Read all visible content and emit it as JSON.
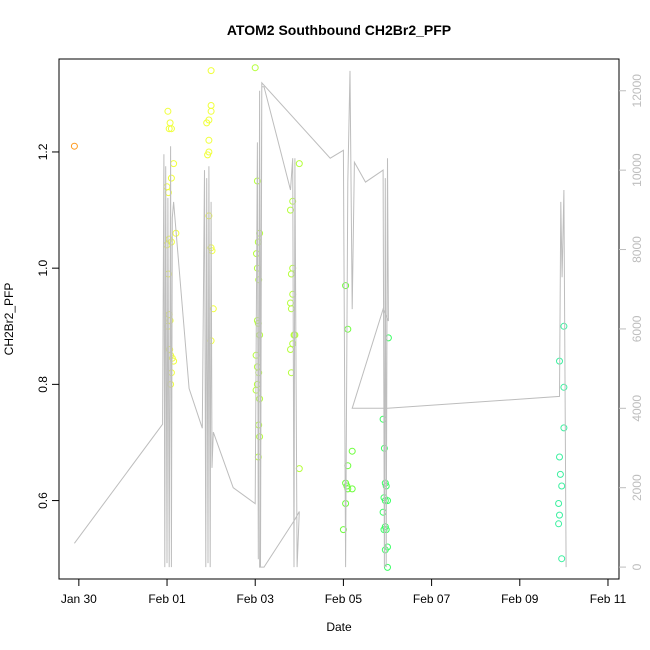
{
  "chart_data": {
    "type": "scatter",
    "title": "ATOM2 Southbound CH2Br2_PFP",
    "xlabel": "Date",
    "ylabel": "CH2Br2_PFP",
    "x_unit": "days (0 = Jan 28 00:00)",
    "xlim": [
      1.55,
      14.25
    ],
    "ylim": [
      0.465,
      1.36
    ],
    "y2lim": [
      -300,
      12800
    ],
    "x_ticks": [
      {
        "value": 2,
        "label": "Jan 30"
      },
      {
        "value": 4,
        "label": "Feb 01"
      },
      {
        "value": 6,
        "label": "Feb 03"
      },
      {
        "value": 8,
        "label": "Feb 05"
      },
      {
        "value": 10,
        "label": "Feb 07"
      },
      {
        "value": 12,
        "label": "Feb 09"
      },
      {
        "value": 14,
        "label": "Feb 11"
      }
    ],
    "y_ticks": [
      {
        "value": 0.6,
        "label": "0.6"
      },
      {
        "value": 0.8,
        "label": "0.8"
      },
      {
        "value": 1.0,
        "label": "1.0"
      },
      {
        "value": 1.2,
        "label": "1.2"
      }
    ],
    "y2_ticks": [
      {
        "value": 0,
        "label": "0"
      },
      {
        "value": 2000,
        "label": "2000"
      },
      {
        "value": 4000,
        "label": "4000"
      },
      {
        "value": 6000,
        "label": "6000"
      },
      {
        "value": 8000,
        "label": "8000"
      },
      {
        "value": 10000,
        "label": "10000"
      },
      {
        "value": 12000,
        "label": "12000"
      }
    ],
    "line_color": "#bdbdbd",
    "altitude_line": {
      "x": [
        1.9,
        3.9,
        3.93,
        3.95,
        3.97,
        4.0,
        4.02,
        4.05,
        4.08,
        4.1,
        4.12,
        4.15,
        4.5,
        4.8,
        4.85,
        4.88,
        4.9,
        4.93,
        4.95,
        4.98,
        5.0,
        5.02,
        5.05,
        5.5,
        6.0,
        6.05,
        6.07,
        6.1,
        6.12,
        6.15,
        6.2,
        6.5,
        6.8,
        6.85,
        6.88,
        6.9,
        6.95,
        7.0,
        6.9,
        6.2,
        6.1,
        6.15,
        7.7,
        8.0,
        8.05,
        8.1,
        8.15,
        8.2,
        8.25,
        8.5,
        8.9,
        8.93,
        8.95,
        8.97,
        9.0,
        9.02,
        8.9,
        8.2,
        9.0,
        12.9,
        12.93,
        12.96,
        13.0,
        13.05
      ],
      "y": [
        600,
        3600,
        10400,
        0,
        10100,
        100,
        9300,
        0,
        10600,
        0,
        8800,
        9200,
        4500,
        3500,
        10000,
        0,
        9800,
        100,
        10100,
        0,
        9200,
        2500,
        3400,
        2000,
        1600,
        10700,
        200,
        12000,
        0,
        12100,
        12100,
        10800,
        9500,
        10300,
        0,
        10300,
        0,
        1400,
        1200,
        0,
        0,
        12200,
        10300,
        10500,
        0,
        9700,
        12500,
        6500,
        10200,
        9700,
        10000,
        0,
        9800,
        0,
        10300,
        6200,
        6500,
        4000,
        4000,
        4300,
        9200,
        7300,
        9500,
        0
      ]
    },
    "series": [
      {
        "color": "#ff9a1e",
        "points": [
          [
            1.9,
            1.21
          ]
        ]
      },
      {
        "color": "#f0ff3c",
        "points": [
          [
            4.02,
            1.27
          ],
          [
            4.05,
            1.24
          ],
          [
            4.07,
            1.25
          ],
          [
            4.1,
            1.24
          ],
          [
            4.0,
            1.14
          ],
          [
            4.03,
            1.13
          ],
          [
            4.15,
            1.18
          ],
          [
            4.1,
            1.155
          ],
          [
            4.05,
            1.05
          ],
          [
            4.1,
            1.045
          ],
          [
            4.0,
            1.04
          ],
          [
            4.03,
            0.99
          ],
          [
            4.05,
            0.92
          ],
          [
            4.07,
            0.91
          ],
          [
            4.02,
            0.9
          ],
          [
            4.06,
            0.86
          ],
          [
            4.08,
            0.85
          ],
          [
            4.12,
            0.845
          ],
          [
            4.15,
            0.84
          ],
          [
            4.1,
            0.82
          ],
          [
            4.08,
            0.8
          ],
          [
            4.2,
            1.06
          ],
          [
            5.0,
            1.34
          ],
          [
            4.9,
            1.25
          ],
          [
            5.0,
            1.28
          ],
          [
            4.95,
            1.255
          ],
          [
            4.95,
            1.2
          ],
          [
            4.95,
            1.22
          ],
          [
            5.0,
            1.27
          ],
          [
            4.92,
            1.195
          ],
          [
            4.95,
            1.09
          ],
          [
            5.0,
            1.035
          ],
          [
            5.02,
            1.03
          ],
          [
            5.05,
            0.93
          ],
          [
            5.0,
            0.875
          ]
        ]
      },
      {
        "color": "#b6ff3c",
        "points": [
          [
            6.0,
            1.345
          ],
          [
            6.05,
            1.15
          ],
          [
            6.1,
            1.06
          ],
          [
            6.07,
            1.045
          ],
          [
            6.03,
            1.025
          ],
          [
            6.05,
            1.0
          ],
          [
            6.08,
            0.98
          ],
          [
            6.05,
            0.91
          ],
          [
            6.07,
            0.905
          ],
          [
            6.1,
            0.885
          ],
          [
            6.02,
            0.85
          ],
          [
            6.05,
            0.83
          ],
          [
            6.08,
            0.82
          ],
          [
            6.05,
            0.8
          ],
          [
            6.02,
            0.79
          ],
          [
            6.1,
            0.775
          ],
          [
            6.08,
            0.73
          ],
          [
            6.1,
            0.71
          ],
          [
            6.07,
            0.675
          ],
          [
            7.0,
            1.18
          ],
          [
            6.85,
            1.115
          ],
          [
            6.8,
            1.1
          ],
          [
            6.85,
            1.0
          ],
          [
            6.82,
            0.99
          ],
          [
            6.85,
            0.955
          ],
          [
            6.8,
            0.94
          ],
          [
            6.82,
            0.93
          ],
          [
            6.9,
            0.885
          ],
          [
            6.88,
            0.885
          ],
          [
            6.85,
            0.87
          ],
          [
            6.8,
            0.86
          ],
          [
            6.82,
            0.82
          ],
          [
            7.0,
            0.655
          ]
        ]
      },
      {
        "color": "#6dff3c",
        "points": [
          [
            8.05,
            0.97
          ],
          [
            8.1,
            0.895
          ],
          [
            8.2,
            0.685
          ],
          [
            8.1,
            0.66
          ],
          [
            8.05,
            0.63
          ],
          [
            8.08,
            0.625
          ],
          [
            8.1,
            0.62
          ],
          [
            8.2,
            0.62
          ],
          [
            8.05,
            0.595
          ],
          [
            8.0,
            0.55
          ]
        ]
      },
      {
        "color": "#3cff64",
        "points": [
          [
            8.9,
            0.74
          ],
          [
            8.93,
            0.69
          ],
          [
            8.95,
            0.63
          ],
          [
            8.97,
            0.625
          ],
          [
            8.92,
            0.605
          ],
          [
            8.95,
            0.6
          ],
          [
            9.0,
            0.6
          ],
          [
            8.9,
            0.58
          ],
          [
            8.95,
            0.555
          ],
          [
            8.92,
            0.55
          ],
          [
            8.97,
            0.55
          ],
          [
            9.0,
            0.52
          ],
          [
            8.95,
            0.515
          ],
          [
            9.0,
            0.485
          ],
          [
            9.02,
            0.88
          ]
        ]
      },
      {
        "color": "#3cf0a0",
        "points": [
          [
            13.0,
            0.9
          ],
          [
            12.9,
            0.84
          ],
          [
            13.0,
            0.795
          ],
          [
            13.0,
            0.725
          ],
          [
            12.9,
            0.675
          ],
          [
            12.92,
            0.645
          ],
          [
            12.95,
            0.625
          ],
          [
            12.88,
            0.595
          ],
          [
            12.9,
            0.575
          ],
          [
            12.88,
            0.56
          ],
          [
            12.95,
            0.5
          ]
        ]
      }
    ]
  }
}
